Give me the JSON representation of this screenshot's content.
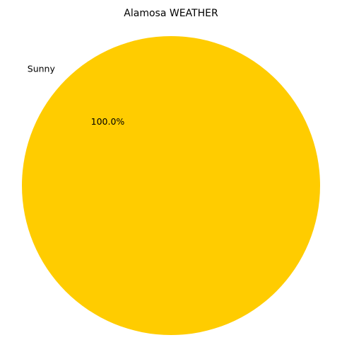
{
  "chart_data": {
    "type": "pie",
    "title": "Alamosa WEATHER",
    "categories": [
      "Sunny"
    ],
    "values": [
      100.0
    ],
    "percent_labels": [
      "100.0%"
    ],
    "colors": [
      "#ffcc00"
    ],
    "legend": "none"
  }
}
